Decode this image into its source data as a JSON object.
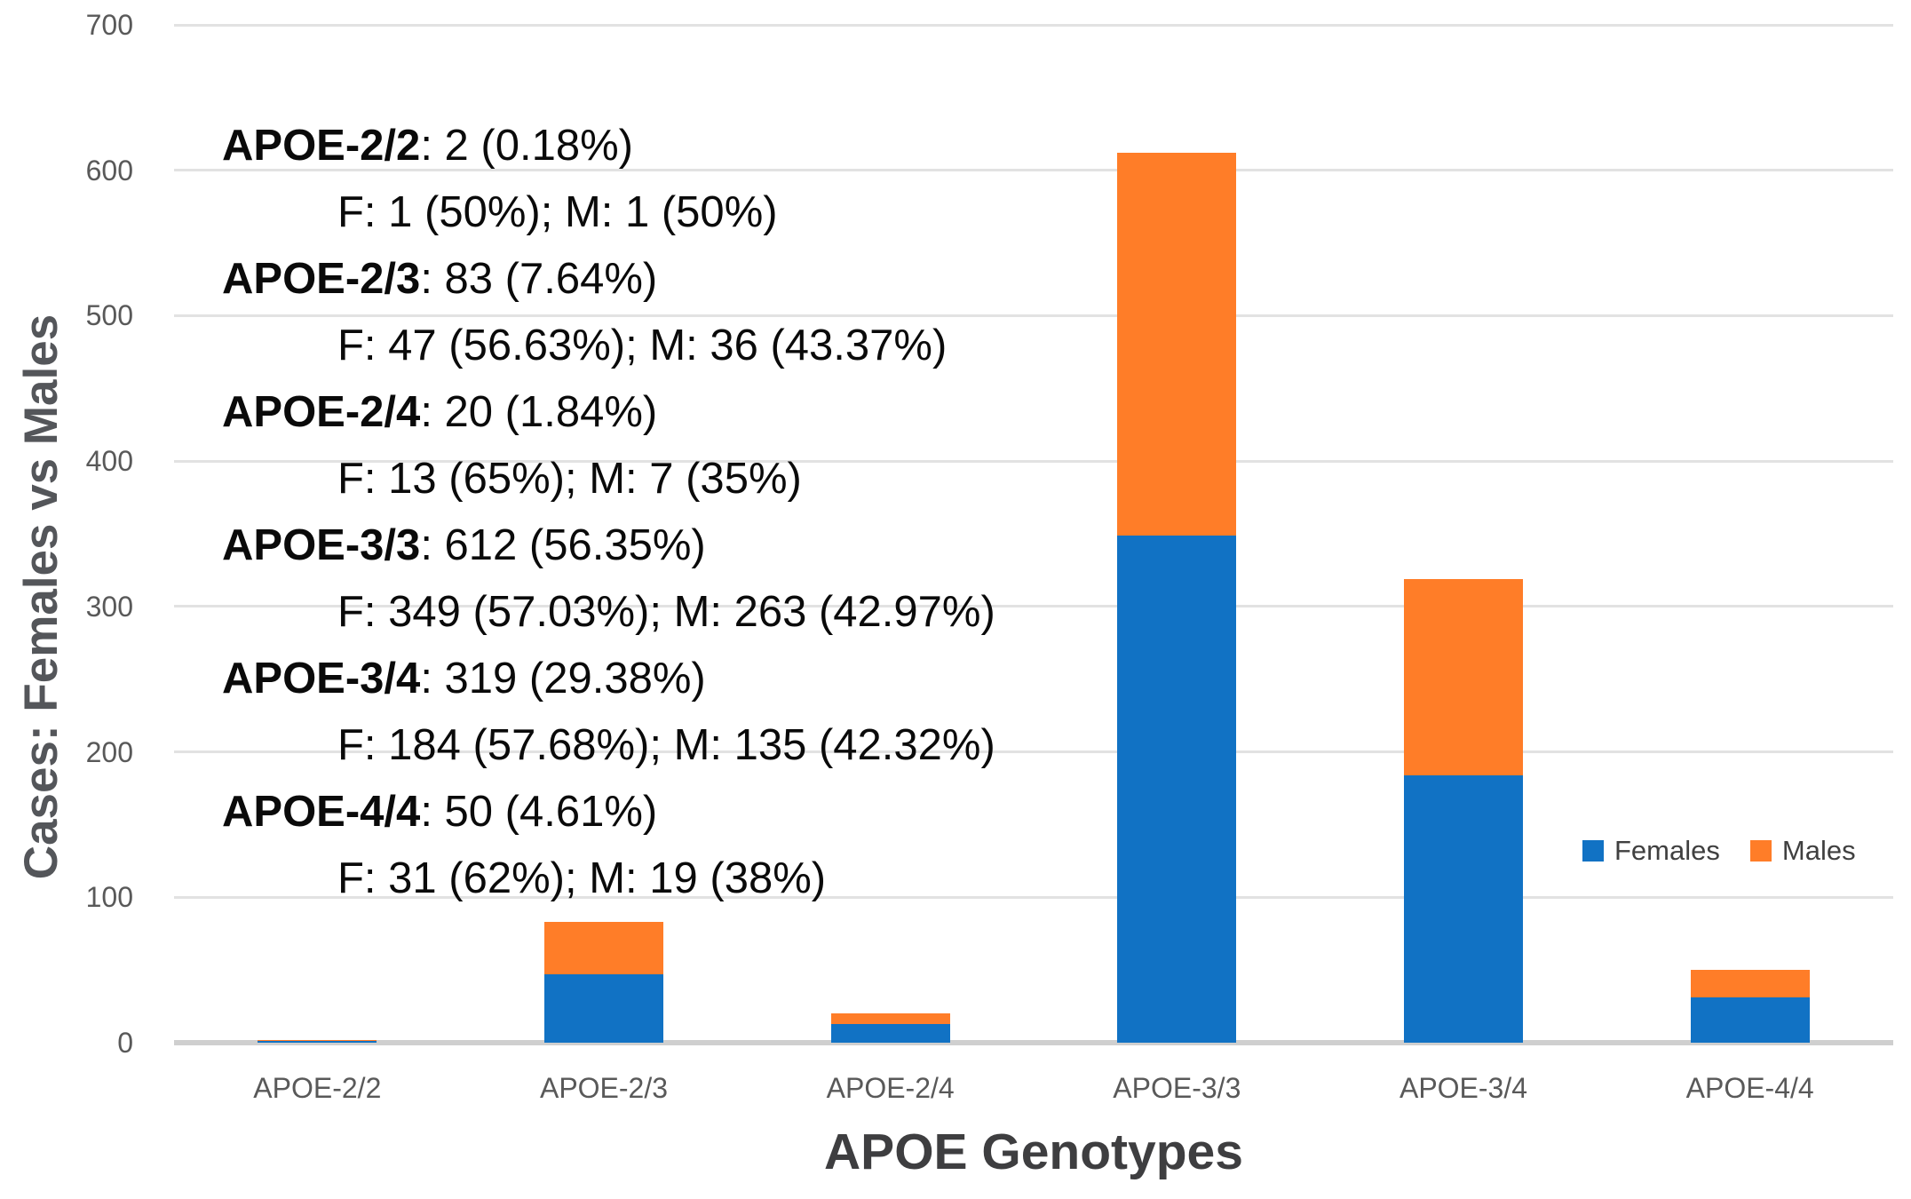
{
  "chart_data": {
    "type": "bar",
    "stacked": true,
    "xlabel": "APOE Genotypes",
    "ylabel": "Cases: Females vs Males",
    "categories": [
      "APOE-2/2",
      "APOE-2/3",
      "APOE-2/4",
      "APOE-3/3",
      "APOE-3/4",
      "APOE-4/4"
    ],
    "series": [
      {
        "name": "Females",
        "color": "#1172C4",
        "values": [
          1,
          47,
          13,
          349,
          184,
          31
        ]
      },
      {
        "name": "Males",
        "color": "#FF7D28",
        "values": [
          1,
          36,
          7,
          263,
          135,
          19
        ]
      }
    ],
    "totals": [
      2,
      83,
      20,
      612,
      319,
      50
    ],
    "ylim": [
      0,
      700
    ],
    "yticks": [
      0,
      100,
      200,
      300,
      400,
      500,
      600,
      700
    ],
    "grid": true,
    "legend_position": "right-middle"
  },
  "legend": {
    "items": [
      {
        "label": "Females",
        "color": "#1172C4"
      },
      {
        "label": "Males",
        "color": "#FF7D28"
      }
    ]
  },
  "annotation": {
    "lines": [
      {
        "genotype": "APOE-2/2",
        "summary": ": 2 (0.18%)",
        "detail": "F: 1 (50%); M: 1 (50%)"
      },
      {
        "genotype": "APOE-2/3",
        "summary": ": 83 (7.64%)",
        "detail": "F: 47 (56.63%); M: 36 (43.37%)"
      },
      {
        "genotype": "APOE-2/4",
        "summary": ": 20 (1.84%)",
        "detail": "F: 13 (65%); M: 7 (35%)"
      },
      {
        "genotype": "APOE-3/3",
        "summary": ": 612 (56.35%)",
        "detail": "F: 349 (57.03%); M: 263 (42.97%)"
      },
      {
        "genotype": "APOE-3/4",
        "summary": ": 319 (29.38%)",
        "detail": "F: 184 (57.68%); M: 135 (42.32%)"
      },
      {
        "genotype": "APOE-4/4",
        "summary": ": 50 (4.61%)",
        "detail": "F: 31 (62%); M: 19 (38%)"
      }
    ]
  },
  "colors": {
    "gridline": "#E2E2E2",
    "axis_line": "#CFCFCF",
    "tick_label": "#595959",
    "axis_title": "#3E3E40",
    "annotation_text": "#0A0A0A"
  }
}
